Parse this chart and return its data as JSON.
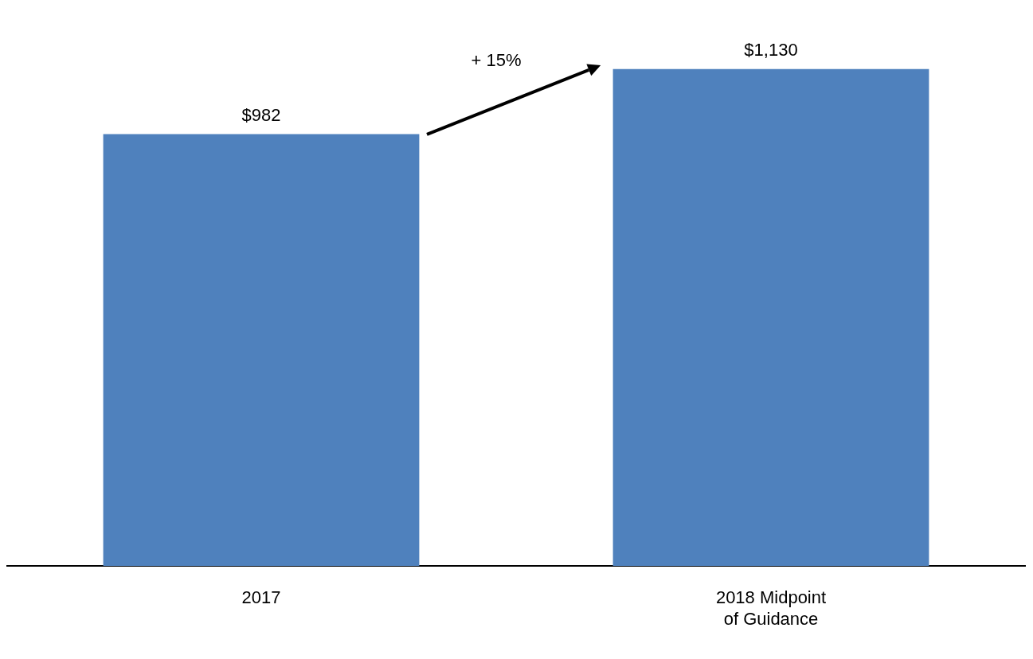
{
  "chart_data": {
    "type": "bar",
    "categories": [
      "2017",
      "2018 Midpoint of Guidance"
    ],
    "values": [
      982,
      1130
    ],
    "value_labels": [
      "$982",
      "$1,130"
    ],
    "color": "#4f81bd",
    "annotations": [
      "+ 15%"
    ],
    "grid": false,
    "legend": false
  }
}
